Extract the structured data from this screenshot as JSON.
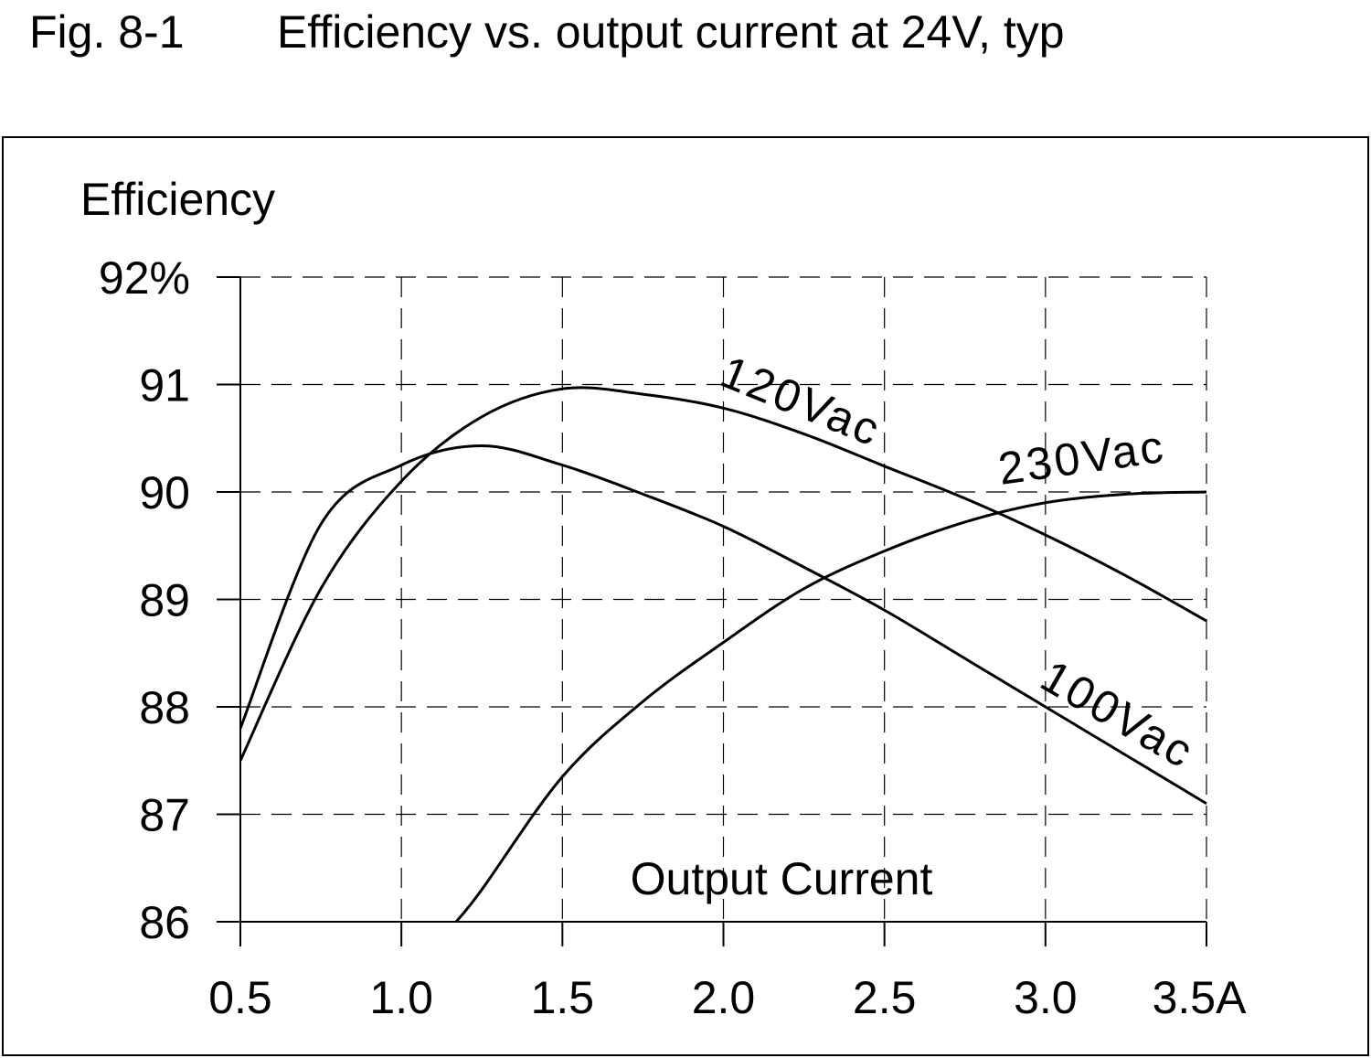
{
  "chart_data": {
    "type": "line",
    "figure_label": "Fig. 8-1",
    "title": "Efficiency vs. output current at 24V, typ",
    "y_label": "Efficiency",
    "x_label": "Output Current",
    "xlim": [
      0.5,
      3.5
    ],
    "xticks": [
      0.5,
      {
        "value": 1,
        "label": "1.0"
      },
      1.5,
      {
        "value": 2,
        "label": "2.0"
      },
      2.5,
      {
        "value": 3,
        "label": "3.0"
      },
      {
        "value": 3.5,
        "label": "3.5A"
      }
    ],
    "ylim": [
      86,
      92
    ],
    "yticks": [
      {
        "value": 92,
        "label": "92%"
      },
      91,
      90,
      89,
      88,
      87,
      86
    ],
    "grid": true,
    "series": [
      {
        "name": "120Vac",
        "color": "#000000",
        "x": [
          0.5,
          0.75,
          1.0,
          1.25,
          1.5,
          1.75,
          2.0,
          2.25,
          2.5,
          2.75,
          3.0,
          3.25,
          3.5
        ],
        "values": [
          87.5,
          89.1,
          90.1,
          90.7,
          90.96,
          90.91,
          90.78,
          90.54,
          90.24,
          89.94,
          89.6,
          89.22,
          88.8
        ]
      },
      {
        "name": "230Vac",
        "color": "#000000",
        "x": [
          1.17,
          1.25,
          1.5,
          1.75,
          2.0,
          2.25,
          2.5,
          2.75,
          3.0,
          3.25,
          3.5
        ],
        "values": [
          86.0,
          86.3,
          87.35,
          88.05,
          88.6,
          89.1,
          89.45,
          89.72,
          89.9,
          89.98,
          90.0
        ]
      },
      {
        "name": "100Vac",
        "color": "#000000",
        "x": [
          0.5,
          0.75,
          1.0,
          1.25,
          1.5,
          1.75,
          2.0,
          2.25,
          2.5,
          2.75,
          3.0,
          3.25,
          3.5
        ],
        "values": [
          87.8,
          89.7,
          90.25,
          90.43,
          90.25,
          89.98,
          89.68,
          89.3,
          88.9,
          88.45,
          88.0,
          87.55,
          87.1
        ]
      }
    ]
  }
}
